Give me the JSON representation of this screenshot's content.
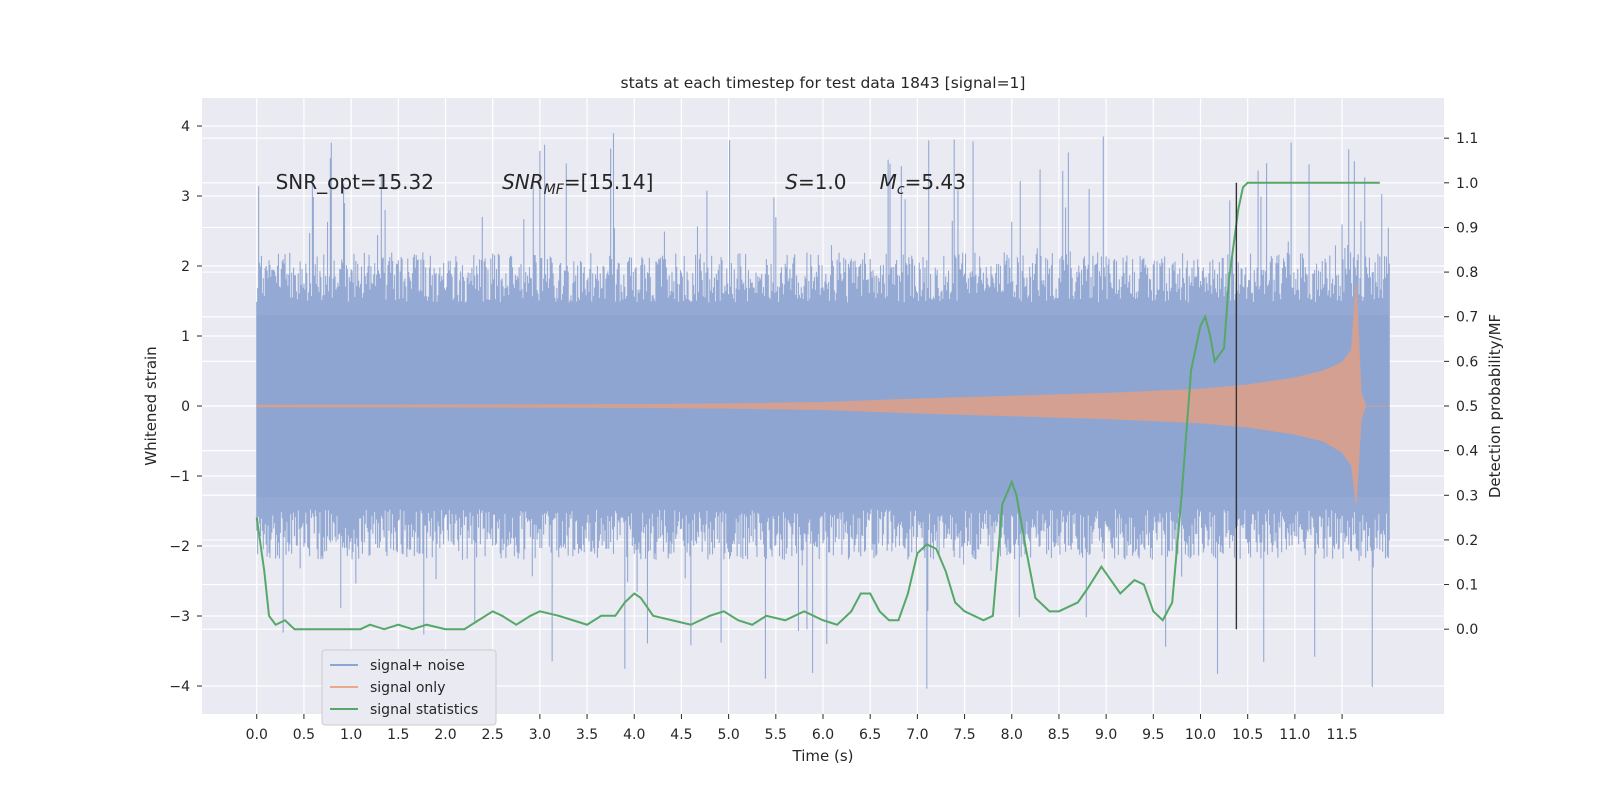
{
  "chart_data": {
    "type": "line",
    "title": "stats at each timestep for test data 1843 [signal=1]",
    "xlabel": "Time (s)",
    "ylabel": "Whitened strain",
    "ylabel_right": "Detection probability/MF",
    "xlim": [
      -0.58,
      12.58
    ],
    "ylim": [
      -4.4,
      4.4
    ],
    "ylim_right": [
      -0.19,
      1.19
    ],
    "x_ticks": [
      0.0,
      0.5,
      1.0,
      1.5,
      2.0,
      2.5,
      3.0,
      3.5,
      4.0,
      4.5,
      5.0,
      5.5,
      6.0,
      6.5,
      7.0,
      7.5,
      8.0,
      8.5,
      9.0,
      9.5,
      10.0,
      10.5,
      11.0,
      11.5
    ],
    "x_tick_labels": [
      "0.0",
      "0.5",
      "1.0",
      "1.5",
      "2.0",
      "2.5",
      "3.0",
      "3.5",
      "4.0",
      "4.5",
      "5.0",
      "5.5",
      "6.0",
      "6.5",
      "7.0",
      "7.5",
      "8.0",
      "8.5",
      "9.0",
      "9.5",
      "10.0",
      "10.5",
      "11.0",
      "11.5"
    ],
    "y_ticks": [
      -4,
      -3,
      -2,
      -1,
      0,
      1,
      2,
      3,
      4
    ],
    "y_tick_labels": [
      "−4",
      "−3",
      "−2",
      "−1",
      "0",
      "1",
      "2",
      "3",
      "4"
    ],
    "y_ticks_right": [
      0.0,
      0.1,
      0.2,
      0.3,
      0.4,
      0.5,
      0.6,
      0.7,
      0.8,
      0.9,
      1.0,
      1.1
    ],
    "y_tick_labels_right": [
      "0.0",
      "0.1",
      "0.2",
      "0.3",
      "0.4",
      "0.5",
      "0.6",
      "0.7",
      "0.8",
      "0.9",
      "1.0",
      "1.1"
    ],
    "grid": true,
    "legend_position": "lower-left",
    "series": [
      {
        "name": "signal+ noise",
        "color": "#8fa5d1",
        "kind": "noise-band",
        "x_range": [
          0.0,
          12.0
        ],
        "envelope": {
          "typical_max": 1.8,
          "typical_min": -1.8,
          "peak_max": 3.9,
          "peak_min": -4.05
        },
        "note": "whitened noise time series, approx. unit variance"
      },
      {
        "name": "signal only",
        "color": "#dd8452",
        "kind": "chirp-envelope",
        "x": [
          0.0,
          2.0,
          4.0,
          5.0,
          6.0,
          7.0,
          8.0,
          9.0,
          10.0,
          10.5,
          11.0,
          11.3,
          11.5,
          11.6,
          11.65,
          11.7,
          11.75,
          12.0
        ],
        "upper": [
          0.01,
          0.015,
          0.02,
          0.03,
          0.05,
          0.1,
          0.14,
          0.18,
          0.24,
          0.3,
          0.4,
          0.5,
          0.62,
          0.8,
          1.75,
          0.2,
          0.0,
          0.0
        ],
        "lower": [
          -0.01,
          -0.015,
          -0.02,
          -0.03,
          -0.05,
          -0.1,
          -0.14,
          -0.18,
          -0.24,
          -0.3,
          -0.4,
          -0.5,
          -0.66,
          -0.85,
          -1.4,
          -0.2,
          0.0,
          0.0
        ]
      },
      {
        "name": "signal statistics",
        "color": "#55a868",
        "axis": "right",
        "x": [
          0.0,
          0.08,
          0.13,
          0.2,
          0.3,
          0.4,
          0.5,
          0.7,
          0.9,
          1.1,
          1.2,
          1.35,
          1.5,
          1.65,
          1.8,
          2.0,
          2.2,
          2.35,
          2.5,
          2.6,
          2.75,
          2.9,
          3.0,
          3.2,
          3.35,
          3.5,
          3.65,
          3.8,
          3.9,
          4.0,
          4.07,
          4.2,
          4.4,
          4.6,
          4.8,
          4.95,
          5.1,
          5.25,
          5.4,
          5.6,
          5.8,
          6.0,
          6.15,
          6.3,
          6.4,
          6.5,
          6.6,
          6.7,
          6.8,
          6.9,
          7.0,
          7.1,
          7.2,
          7.3,
          7.4,
          7.5,
          7.7,
          7.8,
          7.9,
          8.0,
          8.05,
          8.15,
          8.25,
          8.4,
          8.5,
          8.7,
          8.8,
          8.95,
          9.05,
          9.15,
          9.3,
          9.4,
          9.5,
          9.6,
          9.7,
          9.8,
          9.9,
          10.0,
          10.05,
          10.1,
          10.15,
          10.25,
          10.3,
          10.4,
          10.45,
          10.5,
          10.55,
          10.6,
          10.7,
          10.85,
          11.0,
          11.5,
          11.9
        ],
        "values": [
          0.25,
          0.13,
          0.03,
          0.01,
          0.02,
          0.0,
          0.0,
          0.0,
          0.0,
          0.0,
          0.01,
          0.0,
          0.01,
          0.0,
          0.01,
          0.0,
          0.0,
          0.02,
          0.04,
          0.03,
          0.01,
          0.03,
          0.04,
          0.03,
          0.02,
          0.01,
          0.03,
          0.03,
          0.06,
          0.08,
          0.07,
          0.03,
          0.02,
          0.01,
          0.03,
          0.04,
          0.02,
          0.01,
          0.03,
          0.02,
          0.04,
          0.02,
          0.01,
          0.04,
          0.08,
          0.08,
          0.04,
          0.02,
          0.02,
          0.08,
          0.17,
          0.19,
          0.18,
          0.13,
          0.06,
          0.04,
          0.02,
          0.03,
          0.28,
          0.33,
          0.3,
          0.18,
          0.07,
          0.04,
          0.04,
          0.06,
          0.09,
          0.14,
          0.11,
          0.08,
          0.11,
          0.1,
          0.04,
          0.02,
          0.06,
          0.3,
          0.58,
          0.68,
          0.7,
          0.66,
          0.6,
          0.63,
          0.78,
          0.94,
          0.99,
          1.0,
          1.0,
          1.0,
          1.0,
          1.0,
          1.0,
          1.0,
          1.0
        ]
      }
    ],
    "annotations": [
      {
        "label": "SNR_opt=15.32",
        "x": 0.2,
        "y": 3.1
      },
      {
        "label": "SNR_MF=[15.14]",
        "x": 2.6,
        "y": 3.1
      },
      {
        "label": "S=1.0",
        "x": 5.6,
        "y": 3.1
      },
      {
        "label": "M_c=5.43",
        "x": 6.6,
        "y": 3.1
      }
    ],
    "vertical_marker": {
      "x": 10.38,
      "y_from": 0.0,
      "y_to": 1.0,
      "axis": "right",
      "color": "#333333"
    }
  }
}
